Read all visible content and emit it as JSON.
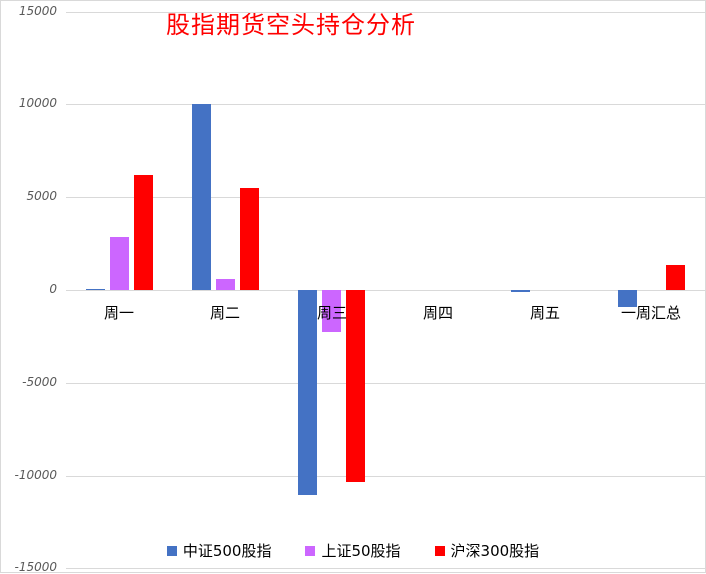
{
  "chart_data": {
    "type": "bar",
    "title": "股指期货空头持仓分析",
    "xlabel": "",
    "ylabel": "",
    "ylim": [
      -15000,
      15000
    ],
    "yticks": [
      15000,
      10000,
      5000,
      0,
      -5000,
      -10000,
      -15000
    ],
    "ytick_labels": [
      "15000",
      "10000",
      "5000",
      "0",
      "-5000",
      "-10000",
      "-15000"
    ],
    "grid": true,
    "legend_position": "bottom",
    "categories": [
      "周一",
      "周二",
      "周三",
      "周四",
      "周五",
      "一周汇总"
    ],
    "series": [
      {
        "name": "中证500股指",
        "color": "#4472c4",
        "values": [
          60,
          10000,
          -11070,
          0,
          -100,
          -930
        ]
      },
      {
        "name": "上证50股指",
        "color": "#cc66ff",
        "values": [
          2860,
          600,
          -2240,
          0,
          0,
          0
        ]
      },
      {
        "name": "沪深300股指",
        "color": "#ff0000",
        "values": [
          6200,
          5500,
          -10370,
          0,
          0,
          1350
        ]
      }
    ]
  },
  "colors": {
    "title": "#ff0000",
    "gridline": "#d9d9d9",
    "axis_text": "#595959"
  }
}
